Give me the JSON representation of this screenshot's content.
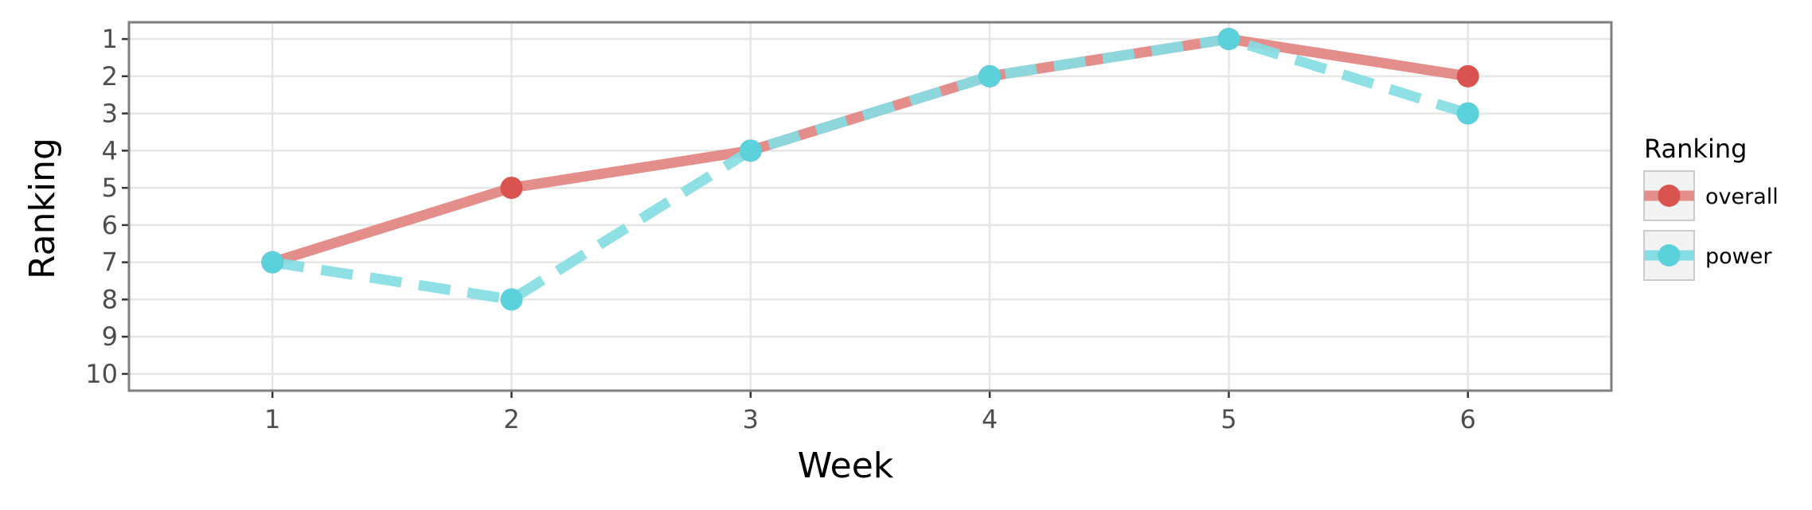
{
  "chart_data": {
    "type": "line",
    "xlabel": "Week",
    "ylabel": "Ranking",
    "x": [
      1,
      2,
      3,
      4,
      5,
      6
    ],
    "xlim": [
      0.4,
      6.6
    ],
    "ylim": [
      10.45,
      0.55
    ],
    "y_reversed": true,
    "x_ticks": [
      1,
      2,
      3,
      4,
      5,
      6
    ],
    "y_ticks": [
      1,
      2,
      3,
      4,
      5,
      6,
      7,
      8,
      9,
      10
    ],
    "grid": true,
    "legend": {
      "title": "Ranking",
      "position": "right"
    },
    "series": [
      {
        "name": "overall",
        "values": [
          7,
          5,
          4,
          2,
          1,
          2
        ],
        "color": "#d9534f",
        "line_color": "#e38e8b",
        "dash": "solid"
      },
      {
        "name": "power",
        "values": [
          7,
          8,
          4,
          2,
          1,
          3
        ],
        "color": "#5bd1dc",
        "line_color": "#86dde3",
        "dash": "dashed"
      }
    ]
  }
}
